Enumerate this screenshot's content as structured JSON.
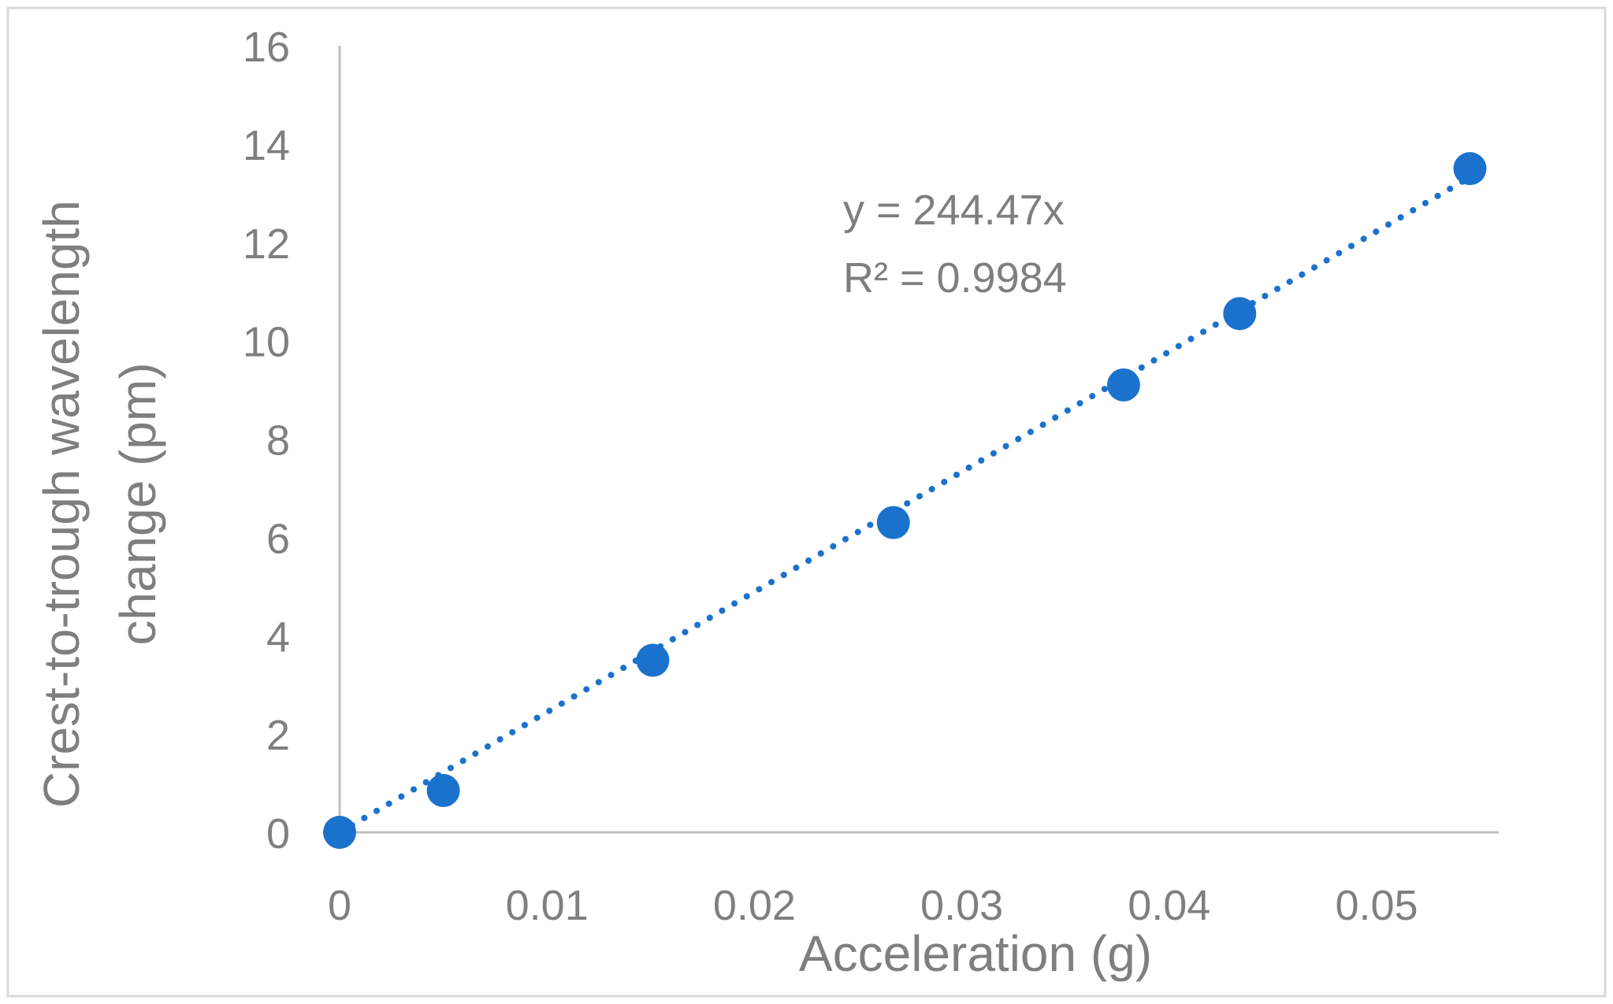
{
  "chart_data": {
    "type": "scatter",
    "title": "",
    "xlabel": "Acceleration (g)",
    "ylabel_lines": [
      "Crest-to-trough wavelength",
      "change (pm)"
    ],
    "xlim": [
      0,
      0.055
    ],
    "ylim": [
      0,
      16
    ],
    "x_ticks": [
      0,
      0.01,
      0.02,
      0.03,
      0.04,
      0.05
    ],
    "x_tick_labels": [
      "0",
      "0.01",
      "0.02",
      "0.03",
      "0.04",
      "0.05"
    ],
    "y_ticks": [
      0,
      2,
      4,
      6,
      8,
      10,
      12,
      14,
      16
    ],
    "y_tick_labels": [
      "0",
      "2",
      "4",
      "6",
      "8",
      "10",
      "12",
      "14",
      "16"
    ],
    "grid": false,
    "legend": "none",
    "series": [
      {
        "x": [
          0,
          0.005,
          0.0151,
          0.0267,
          0.0378,
          0.0434,
          0.0545
        ],
        "y": [
          0,
          0.85,
          3.5,
          6.3,
          9.1,
          10.55,
          13.5
        ],
        "color": "#1b72cc",
        "trendline": {
          "type": "linear-through-origin",
          "slope": 244.47,
          "style": "dotted",
          "equation": "y = 244.47x",
          "r_squared": "R² = 0.9984"
        }
      }
    ],
    "colors": {
      "axis": "#bfbfbf",
      "text": "#7f7f7f",
      "marker": "#1b72cc",
      "frame": "#d9d9d9"
    }
  }
}
